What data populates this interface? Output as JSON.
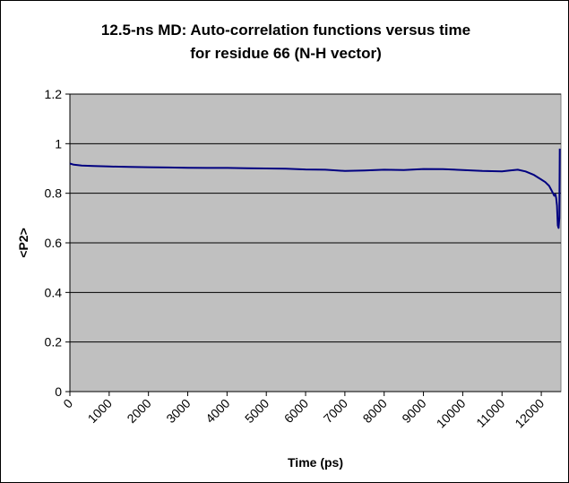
{
  "chart_data": {
    "type": "line",
    "title": [
      "12.5-ns MD: Auto-correlation functions versus time",
      "for residue 66 (N-H vector)"
    ],
    "xlabel": "Time (ps)",
    "ylabel": "<P2>",
    "xlim": [
      0,
      12500
    ],
    "ylim": [
      0,
      1.2
    ],
    "x_ticks": [
      0,
      1000,
      2000,
      3000,
      4000,
      5000,
      6000,
      7000,
      8000,
      9000,
      10000,
      11000,
      12000
    ],
    "y_ticks": [
      0,
      0.2,
      0.4,
      0.6,
      0.8,
      1,
      1.2
    ],
    "grid": true,
    "legend": "none",
    "plot_background": "#c0c0c0",
    "series": [
      {
        "color": "#000080",
        "x": [
          0,
          100,
          300,
          600,
          1000,
          1500,
          2000,
          2500,
          3000,
          3500,
          4000,
          4500,
          5000,
          5500,
          6000,
          6500,
          7000,
          7500,
          8000,
          8500,
          9000,
          9500,
          10000,
          10500,
          11000,
          11200,
          11400,
          11600,
          11800,
          12000,
          12100,
          12200,
          12250,
          12300,
          12330,
          12360,
          12380,
          12400,
          12420,
          12440,
          12460,
          12470
        ],
        "y": [
          0.92,
          0.915,
          0.912,
          0.91,
          0.908,
          0.906,
          0.905,
          0.904,
          0.903,
          0.902,
          0.902,
          0.901,
          0.9,
          0.899,
          0.896,
          0.895,
          0.89,
          0.892,
          0.895,
          0.894,
          0.898,
          0.897,
          0.894,
          0.89,
          0.888,
          0.892,
          0.895,
          0.888,
          0.875,
          0.855,
          0.845,
          0.83,
          0.815,
          0.8,
          0.79,
          0.795,
          0.78,
          0.75,
          0.67,
          0.66,
          0.7,
          0.98
        ]
      }
    ]
  }
}
